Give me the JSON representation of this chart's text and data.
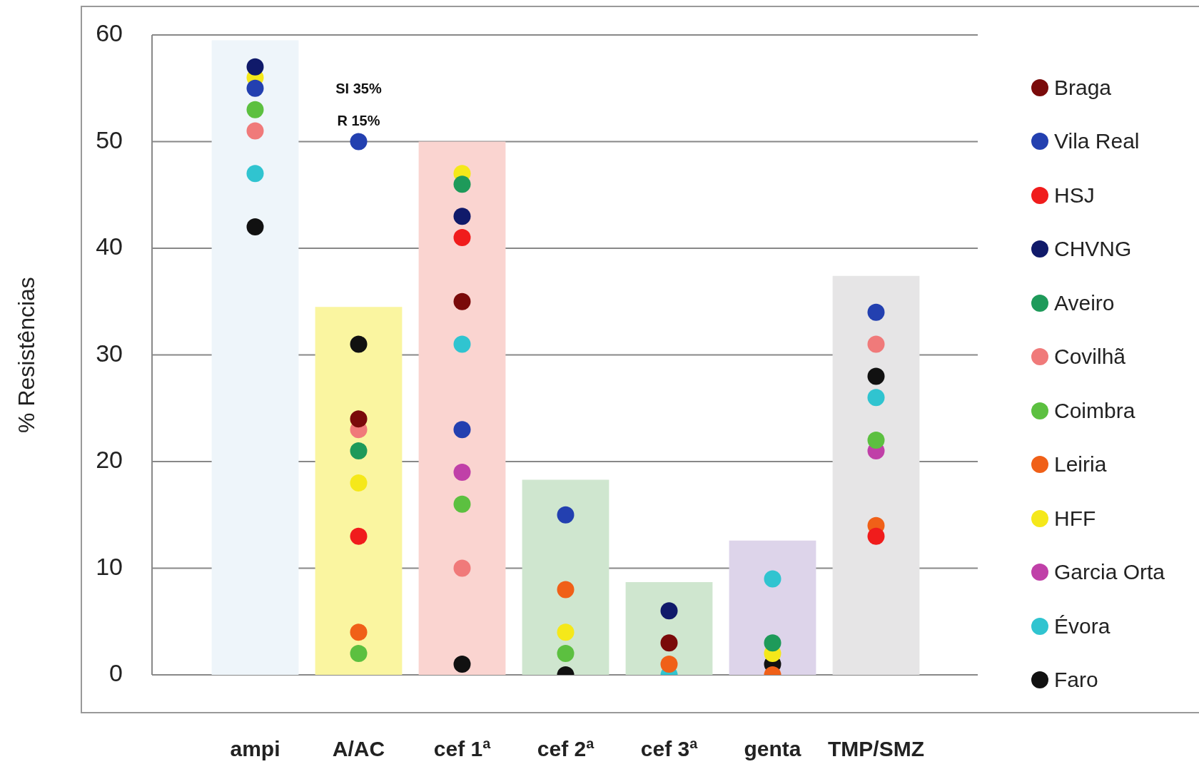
{
  "chart_data": {
    "type": "scatter",
    "ylabel": "% Resistências",
    "categories": [
      "ampi",
      "A/AC",
      "cef 1ª",
      "cef 2ª",
      "cef 3ª",
      "genta",
      "TMP/SMZ"
    ],
    "ylim": [
      0,
      60
    ],
    "yticks": [
      0,
      10,
      20,
      30,
      40,
      50,
      60
    ],
    "grid": "y",
    "legend": "right",
    "marker": "circle",
    "annotations": [
      "SI 35%",
      "R 15%"
    ],
    "series": [
      {
        "type": "bar",
        "colors": [
          "#eef5fa",
          "#faf5a0",
          "#fad4d0",
          "#cfe6cf",
          "#cfe6cf",
          "#ddd4ea",
          "#e6e5e6"
        ],
        "values": [
          59.5,
          34.5,
          50,
          18.3,
          8.7,
          12.6,
          37.4
        ]
      },
      {
        "name": "Braga",
        "color": "#7a0a0a",
        "values": [
          null,
          24,
          35,
          null,
          3,
          null,
          null
        ]
      },
      {
        "name": "Vila Real",
        "color": "#2340b0",
        "values": [
          55,
          50,
          23,
          15,
          null,
          null,
          34
        ]
      },
      {
        "name": "HSJ",
        "color": "#f01c1c",
        "values": [
          null,
          13,
          41,
          null,
          null,
          null,
          13
        ]
      },
      {
        "name": "CHVNG",
        "color": "#101a6a",
        "values": [
          57,
          null,
          43,
          null,
          6,
          null,
          null
        ]
      },
      {
        "name": "Aveiro",
        "color": "#1e9a5a",
        "values": [
          null,
          21,
          46,
          null,
          null,
          3,
          null
        ]
      },
      {
        "name": "Covilhã",
        "color": "#f07a7a",
        "values": [
          51,
          23,
          10,
          null,
          null,
          null,
          31
        ]
      },
      {
        "name": "Coimbra",
        "color": "#5cc040",
        "values": [
          53,
          2,
          16,
          2,
          null,
          null,
          22
        ]
      },
      {
        "name": "Leiria",
        "color": "#f06018",
        "values": [
          null,
          4,
          null,
          8,
          1,
          0,
          14
        ]
      },
      {
        "name": "HFF",
        "color": "#f5e81a",
        "values": [
          56,
          18,
          47,
          4,
          null,
          2,
          null
        ]
      },
      {
        "name": "Garcia Orta",
        "color": "#c040a8",
        "values": [
          null,
          null,
          19,
          null,
          null,
          null,
          21
        ]
      },
      {
        "name": "Évora",
        "color": "#30c4d0",
        "values": [
          47,
          null,
          31,
          null,
          0,
          9,
          26
        ]
      },
      {
        "name": "Faro",
        "color": "#111111",
        "values": [
          42,
          31,
          1,
          0,
          null,
          1,
          28
        ]
      }
    ]
  }
}
